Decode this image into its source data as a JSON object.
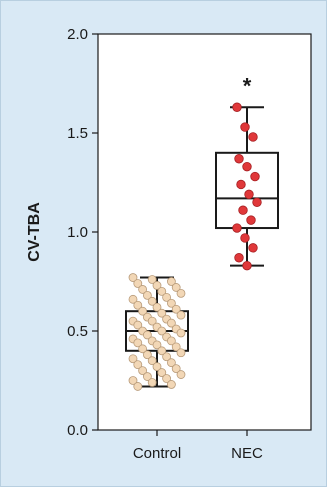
{
  "chart_data": {
    "type": "box",
    "ylabel": "CV-TBA",
    "xlabel": "",
    "ylim": [
      0,
      2.0
    ],
    "yticks": [
      0.0,
      0.5,
      1.0,
      1.5,
      2.0
    ],
    "ytick_labels": [
      "0.0",
      "0.5",
      "1.0",
      "1.5",
      "2.0"
    ],
    "categories": [
      "Control",
      "NEC"
    ],
    "grid": false,
    "annotations": [
      {
        "category": "NEC",
        "text": "*"
      }
    ],
    "boxes": [
      {
        "category": "Control",
        "min": 0.22,
        "q1": 0.4,
        "median": 0.5,
        "q3": 0.6,
        "max": 0.77,
        "point_color": "#f2d7b6",
        "point_edge": "#b89b7a",
        "points": [
          0.77,
          0.76,
          0.75,
          0.74,
          0.73,
          0.72,
          0.71,
          0.7,
          0.69,
          0.68,
          0.67,
          0.66,
          0.65,
          0.64,
          0.63,
          0.62,
          0.61,
          0.6,
          0.59,
          0.58,
          0.57,
          0.56,
          0.55,
          0.55,
          0.54,
          0.53,
          0.52,
          0.51,
          0.5,
          0.5,
          0.49,
          0.48,
          0.47,
          0.46,
          0.45,
          0.45,
          0.44,
          0.43,
          0.42,
          0.41,
          0.4,
          0.39,
          0.38,
          0.37,
          0.36,
          0.35,
          0.34,
          0.33,
          0.32,
          0.31,
          0.3,
          0.29,
          0.28,
          0.27,
          0.26,
          0.25,
          0.24,
          0.23,
          0.22
        ]
      },
      {
        "category": "NEC",
        "min": 0.83,
        "q1": 1.02,
        "median": 1.17,
        "q3": 1.4,
        "max": 1.63,
        "point_color": "#e0383a",
        "point_edge": "#a51f22",
        "points": [
          1.63,
          1.53,
          1.48,
          1.37,
          1.33,
          1.28,
          1.24,
          1.19,
          1.15,
          1.11,
          1.06,
          1.02,
          0.97,
          0.92,
          0.87,
          0.83
        ]
      }
    ]
  }
}
